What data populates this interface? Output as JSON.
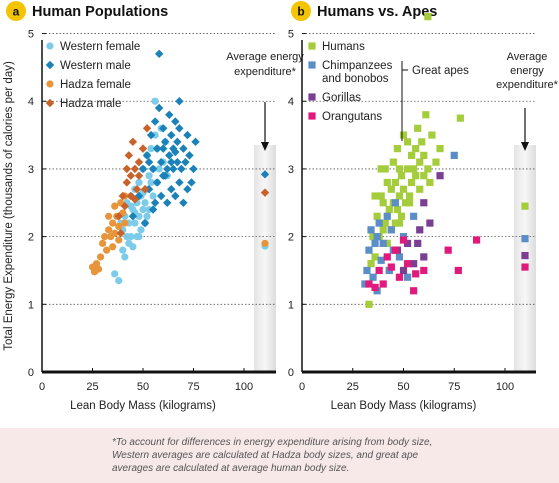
{
  "chart_data": [
    {
      "type": "scatter",
      "panel": "a",
      "title": "Human Populations",
      "xlabel": "Lean Body Mass (kilograms)",
      "ylabel": "Total Energy Expenditure (thousands of calories per day)",
      "xlim": [
        0,
        100
      ],
      "ylim": [
        0,
        5.2
      ],
      "xticks": [
        0,
        25,
        50,
        75,
        100
      ],
      "yticks": [
        0,
        1,
        2,
        3,
        4,
        5
      ],
      "grid": "dotted horizontal at 1-5",
      "legend_position": "top-left",
      "average_label": "Average energy expenditure*",
      "series": [
        {
          "name": "Western female",
          "marker": "circle",
          "color": "#7ccbe8",
          "points": [
            [
              36,
              1.45
            ],
            [
              38,
              1.35
            ],
            [
              40,
              1.8
            ],
            [
              40,
              2.1
            ],
            [
              41,
              2.3
            ],
            [
              42,
              2.0
            ],
            [
              42,
              2.5
            ],
            [
              43,
              1.9
            ],
            [
              43,
              2.2
            ],
            [
              44,
              2.6
            ],
            [
              44,
              2.0
            ],
            [
              45,
              2.4
            ],
            [
              45,
              1.85
            ],
            [
              46,
              2.2
            ],
            [
              46,
              2.7
            ],
            [
              47,
              2.5
            ],
            [
              47,
              2.0
            ],
            [
              48,
              2.3
            ],
            [
              48,
              2.8
            ],
            [
              49,
              2.6
            ],
            [
              49,
              2.1
            ],
            [
              50,
              2.4
            ],
            [
              50,
              3.0
            ],
            [
              51,
              2.5
            ],
            [
              51,
              2.2
            ],
            [
              52,
              2.7
            ],
            [
              52,
              3.2
            ],
            [
              53,
              2.9
            ],
            [
              53,
              2.4
            ],
            [
              54,
              3.3
            ],
            [
              55,
              2.6
            ],
            [
              55,
              3.0
            ],
            [
              56,
              3.5
            ],
            [
              57,
              2.8
            ],
            [
              57,
              3.3
            ],
            [
              58,
              3.0
            ],
            [
              59,
              3.6
            ],
            [
              60,
              3.1
            ],
            [
              61,
              3.4
            ],
            [
              62,
              2.9
            ],
            [
              56,
              4.0
            ],
            [
              48,
              2.0
            ],
            [
              44,
              2.45
            ],
            [
              46,
              2.35
            ],
            [
              50,
              2.65
            ],
            [
              39,
              2.2
            ],
            [
              41,
              1.7
            ],
            [
              54,
              2.8
            ],
            [
              52,
              2.3
            ]
          ]
        },
        {
          "name": "Western male",
          "marker": "diamond",
          "color": "#1a82b8",
          "points": [
            [
              45,
              2.3
            ],
            [
              48,
              2.6
            ],
            [
              50,
              3.0
            ],
            [
              51,
              2.2
            ],
            [
              52,
              3.2
            ],
            [
              53,
              2.7
            ],
            [
              54,
              3.5
            ],
            [
              55,
              2.4
            ],
            [
              55,
              3.0
            ],
            [
              56,
              3.7
            ],
            [
              57,
              2.8
            ],
            [
              57,
              3.3
            ],
            [
              58,
              3.9
            ],
            [
              59,
              2.6
            ],
            [
              59,
              3.1
            ],
            [
              60,
              3.6
            ],
            [
              60,
              2.9
            ],
            [
              61,
              3.4
            ],
            [
              62,
              2.5
            ],
            [
              62,
              3.0
            ],
            [
              63,
              3.8
            ],
            [
              63,
              3.2
            ],
            [
              64,
              2.7
            ],
            [
              64,
              3.5
            ],
            [
              65,
              3.0
            ],
            [
              65,
              3.3
            ],
            [
              66,
              2.6
            ],
            [
              66,
              3.7
            ],
            [
              67,
              3.1
            ],
            [
              67,
              3.4
            ],
            [
              68,
              2.8
            ],
            [
              68,
              3.6
            ],
            [
              69,
              3.0
            ],
            [
              70,
              3.3
            ],
            [
              70,
              2.5
            ],
            [
              71,
              3.1
            ],
            [
              72,
              2.7
            ],
            [
              72,
              3.5
            ],
            [
              73,
              3.2
            ],
            [
              74,
              2.8
            ],
            [
              75,
              3.0
            ],
            [
              76,
              3.4
            ],
            [
              58,
              4.7
            ],
            [
              68,
              4.0
            ],
            [
              61,
              2.9
            ],
            [
              53,
              3.1
            ],
            [
              56,
              2.5
            ],
            [
              64,
              3.1
            ],
            [
              66,
              3.25
            ],
            [
              60,
              3.3
            ]
          ]
        },
        {
          "name": "Hadza female",
          "marker": "circle",
          "color": "#e8943a",
          "points": [
            [
              25,
              1.55
            ],
            [
              26,
              1.48
            ],
            [
              27,
              1.6
            ],
            [
              28,
              1.52
            ],
            [
              29,
              1.7
            ],
            [
              30,
              1.9
            ],
            [
              31,
              2.0
            ],
            [
              32,
              1.8
            ],
            [
              33,
              2.1
            ],
            [
              34,
              2.0
            ],
            [
              35,
              2.2
            ],
            [
              35,
              1.85
            ],
            [
              36,
              2.05
            ],
            [
              37,
              2.3
            ],
            [
              38,
              2.15
            ],
            [
              39,
              2.5
            ],
            [
              40,
              2.35
            ],
            [
              41,
              2.6
            ],
            [
              36,
              2.45
            ],
            [
              33,
              2.3
            ],
            [
              38,
              1.95
            ],
            [
              41,
              2.2
            ]
          ]
        },
        {
          "name": "Hadza male",
          "marker": "diamond",
          "color": "#c8622a",
          "points": [
            [
              38,
              2.3
            ],
            [
              40,
              2.6
            ],
            [
              42,
              2.8
            ],
            [
              43,
              3.2
            ],
            [
              44,
              2.9
            ],
            [
              45,
              3.4
            ],
            [
              46,
              3.0
            ],
            [
              47,
              2.7
            ],
            [
              48,
              3.1
            ],
            [
              50,
              3.3
            ],
            [
              52,
              3.6
            ],
            [
              39,
              2.05
            ],
            [
              41,
              2.45
            ],
            [
              46,
              2.55
            ],
            [
              42,
              3.0
            ],
            [
              48,
              2.9
            ],
            [
              51,
              2.7
            ],
            [
              44,
              2.6
            ]
          ]
        }
      ],
      "averages": [
        {
          "name": "Western male",
          "value": 2.92
        },
        {
          "name": "Hadza male",
          "value": 2.65
        },
        {
          "name": "Western female",
          "value": 1.86
        },
        {
          "name": "Hadza female",
          "value": 1.9
        }
      ]
    },
    {
      "type": "scatter",
      "panel": "b",
      "title": "Humans vs. Apes",
      "xlabel": "Lean Body Mass (kilograms)",
      "ylabel": "",
      "xlim": [
        0,
        100
      ],
      "ylim": [
        0,
        5.2
      ],
      "xticks": [
        0,
        25,
        50,
        75,
        100
      ],
      "yticks": [
        0,
        1,
        2,
        3,
        4,
        5
      ],
      "grid": "dotted horizontal at 1-5",
      "legend_position": "top-left",
      "average_label": "Average energy expenditure*",
      "group_label": "Great apes",
      "series": [
        {
          "name": "Humans",
          "marker": "square",
          "color": "#a5cc3a",
          "points": [
            [
              33,
              1.0
            ],
            [
              34,
              1.6
            ],
            [
              35,
              2.0
            ],
            [
              36,
              1.7
            ],
            [
              37,
              2.3
            ],
            [
              38,
              2.0
            ],
            [
              39,
              2.6
            ],
            [
              39,
              3.0
            ],
            [
              40,
              2.1
            ],
            [
              40,
              2.5
            ],
            [
              41,
              2.2
            ],
            [
              42,
              2.8
            ],
            [
              42,
              1.9
            ],
            [
              43,
              2.4
            ],
            [
              44,
              2.7
            ],
            [
              44,
              2.1
            ],
            [
              45,
              3.1
            ],
            [
              45,
              2.5
            ],
            [
              46,
              2.2
            ],
            [
              46,
              2.8
            ],
            [
              47,
              3.3
            ],
            [
              47,
              2.4
            ],
            [
              48,
              2.6
            ],
            [
              48,
              3.0
            ],
            [
              49,
              2.9
            ],
            [
              49,
              2.3
            ],
            [
              50,
              3.5
            ],
            [
              50,
              2.7
            ],
            [
              51,
              2.5
            ],
            [
              52,
              3.0
            ],
            [
              52,
              3.4
            ],
            [
              53,
              2.6
            ],
            [
              54,
              3.2
            ],
            [
              54,
              2.8
            ],
            [
              55,
              3.0
            ],
            [
              56,
              2.9
            ],
            [
              56,
              3.3
            ],
            [
              57,
              3.6
            ],
            [
              58,
              3.1
            ],
            [
              58,
              2.7
            ],
            [
              59,
              3.4
            ],
            [
              60,
              2.9
            ],
            [
              60,
              3.2
            ],
            [
              61,
              3.8
            ],
            [
              62,
              3.0
            ],
            [
              63,
              2.8
            ],
            [
              64,
              3.5
            ],
            [
              66,
              3.1
            ],
            [
              68,
              3.3
            ],
            [
              78,
              3.75
            ],
            [
              62,
              5.25
            ],
            [
              41,
              3.0
            ],
            [
              43,
              1.5
            ],
            [
              48,
              2.2
            ],
            [
              53,
              2.5
            ],
            [
              36,
              2.6
            ]
          ]
        },
        {
          "name": "Chimpanzees and bonobos",
          "marker": "square",
          "color": "#5b8ec7",
          "points": [
            [
              32,
              1.5
            ],
            [
              33,
              1.8
            ],
            [
              34,
              2.1
            ],
            [
              35,
              1.4
            ],
            [
              36,
              1.9
            ],
            [
              37,
              1.2
            ],
            [
              38,
              2.2
            ],
            [
              39,
              1.65
            ],
            [
              40,
              1.9
            ],
            [
              42,
              2.3
            ],
            [
              43,
              1.5
            ],
            [
              44,
              2.1
            ],
            [
              45,
              1.8
            ],
            [
              46,
              2.5
            ],
            [
              48,
              1.7
            ],
            [
              50,
              2.0
            ],
            [
              52,
              1.4
            ],
            [
              55,
              2.3
            ],
            [
              75,
              3.2
            ],
            [
              31,
              1.3
            ],
            [
              37,
              2.0
            ]
          ]
        },
        {
          "name": "Gorillas",
          "marker": "square",
          "color": "#7a3f93",
          "points": [
            [
              47,
              1.8
            ],
            [
              50,
              1.5
            ],
            [
              52,
              1.9
            ],
            [
              55,
              1.6
            ],
            [
              58,
              2.1
            ],
            [
              60,
              1.7
            ],
            [
              63,
              2.2
            ],
            [
              68,
              2.9
            ],
            [
              60,
              2.5
            ],
            [
              57,
              1.9
            ]
          ]
        },
        {
          "name": "Orangutans",
          "marker": "square",
          "color": "#e0197d",
          "points": [
            [
              33,
              1.3
            ],
            [
              36,
              1.25
            ],
            [
              38,
              1.5
            ],
            [
              40,
              1.3
            ],
            [
              42,
              1.7
            ],
            [
              44,
              1.55
            ],
            [
              46,
              1.8
            ],
            [
              48,
              1.4
            ],
            [
              50,
              1.95
            ],
            [
              52,
              1.6
            ],
            [
              55,
              1.2
            ],
            [
              60,
              1.5
            ],
            [
              72,
              1.8
            ],
            [
              77,
              1.5
            ],
            [
              86,
              1.95
            ],
            [
              56,
              1.45
            ]
          ]
        }
      ],
      "averages": [
        {
          "name": "Humans",
          "value": 2.45
        },
        {
          "name": "Chimpanzees and bonobos",
          "value": 1.97
        },
        {
          "name": "Gorillas",
          "value": 1.72
        },
        {
          "name": "Orangutans",
          "value": 1.55
        }
      ]
    }
  ],
  "footnote": "*To account for differences in energy expenditure arising from body size, Western averages are calculated at Hadza body sizes, and great ape averages are calculated at average human body size."
}
